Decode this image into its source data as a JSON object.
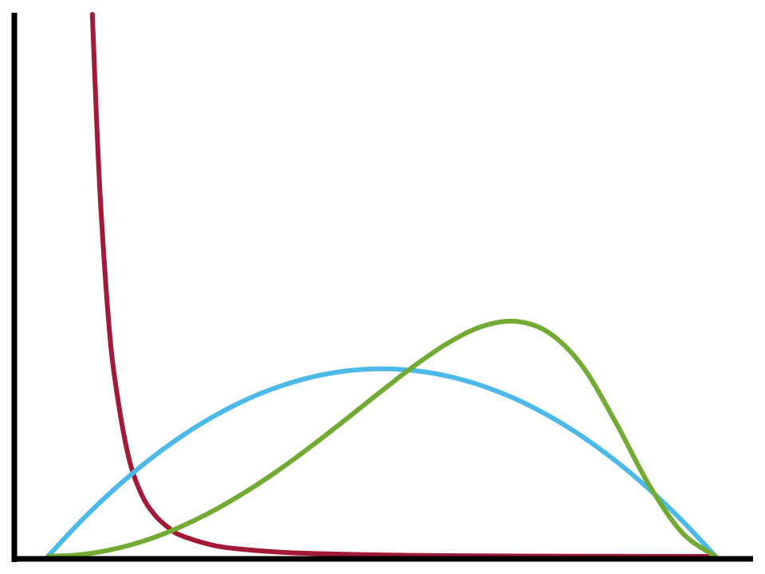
{
  "chart_data": {
    "type": "line",
    "title": "",
    "xlabel": "",
    "ylabel": "",
    "xlim": [
      0,
      1
    ],
    "ylim": [
      0,
      2.6
    ],
    "grid": false,
    "legend": "none",
    "series": [
      {
        "color": "#a31a38",
        "x": [
          0.0667,
          0.07,
          0.075,
          0.08,
          0.09,
          0.1,
          0.12,
          0.14,
          0.16,
          0.18,
          0.2,
          0.25,
          0.3,
          0.35,
          0.4,
          0.5,
          0.6,
          0.7,
          0.8,
          0.9,
          1.0
        ],
        "y": [
          2.6,
          2.33,
          1.95,
          1.64,
          1.17,
          0.86,
          0.49,
          0.3,
          0.2,
          0.14,
          0.1,
          0.052,
          0.032,
          0.02,
          0.014,
          0.007,
          0.004,
          0.002,
          0.001,
          0.0005,
          0.0
        ]
      },
      {
        "color": "#4cb9e8",
        "x": [
          0.0,
          0.05,
          0.1,
          0.15,
          0.2,
          0.25,
          0.3,
          0.35,
          0.4,
          0.45,
          0.5,
          0.55,
          0.6,
          0.65,
          0.7,
          0.75,
          0.8,
          0.85,
          0.9,
          0.95,
          1.0
        ],
        "y": [
          0.0,
          0.171,
          0.324,
          0.459,
          0.576,
          0.675,
          0.756,
          0.819,
          0.864,
          0.891,
          0.9,
          0.891,
          0.864,
          0.819,
          0.756,
          0.675,
          0.576,
          0.459,
          0.324,
          0.171,
          0.0
        ]
      },
      {
        "color": "#72aa34",
        "x": [
          0.0,
          0.05,
          0.1,
          0.15,
          0.2,
          0.25,
          0.3,
          0.35,
          0.4,
          0.45,
          0.5,
          0.55,
          0.6,
          0.65,
          0.7,
          0.75,
          0.8,
          0.85,
          0.9,
          0.95,
          1.0
        ],
        "y": [
          0.0,
          0.009,
          0.036,
          0.081,
          0.144,
          0.223,
          0.317,
          0.424,
          0.542,
          0.667,
          0.794,
          0.917,
          1.025,
          1.103,
          1.128,
          1.074,
          0.915,
          0.646,
          0.345,
          0.114,
          0.0
        ]
      }
    ]
  }
}
